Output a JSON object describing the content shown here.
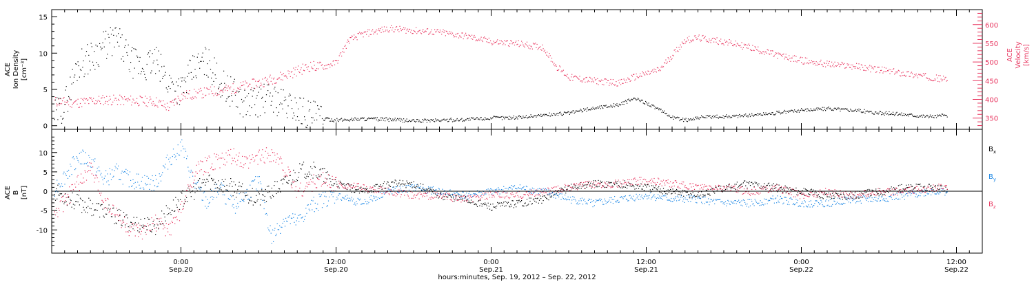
{
  "colors": {
    "black": "#000000",
    "pink": "#e8345e",
    "blue": "#1e88e5"
  },
  "xaxis": {
    "title": "hours:minutes, Sep. 19, 2012 – Sep. 22, 2012",
    "start_hour": 14,
    "end_hour": 86,
    "ticks": [
      {
        "hour": 24,
        "time": "0:00",
        "date": "Sep.20"
      },
      {
        "hour": 36,
        "time": "12:00",
        "date": "Sep.20"
      },
      {
        "hour": 48,
        "time": "0:00",
        "date": "Sep.21"
      },
      {
        "hour": 60,
        "time": "12:00",
        "date": "Sep.21"
      },
      {
        "hour": 72,
        "time": "0:00",
        "date": "Sep.22"
      },
      {
        "hour": 84,
        "time": "12:00",
        "date": "Sep.22"
      }
    ]
  },
  "chart_data": [
    {
      "type": "scatter",
      "panel": "top",
      "ylabel_left": [
        "ACE",
        "Ion Density",
        "[cm⁻³]"
      ],
      "ylabel_right": [
        "ACE",
        "Velocity",
        "[km/s]"
      ],
      "ylim_left": [
        -0.5,
        16
      ],
      "ylim_right": [
        320,
        640
      ],
      "yticks_left": [
        0,
        5,
        10,
        15
      ],
      "yticks_right": [
        350,
        400,
        450,
        500,
        550,
        600
      ],
      "grid": false,
      "series": [
        {
          "axis": "left",
          "color": "black",
          "points": [
            [
              14.2,
              1.5
            ],
            [
              15,
              3
            ],
            [
              16,
              8.5
            ],
            [
              17,
              9.5
            ],
            [
              18,
              11
            ],
            [
              19,
              12
            ],
            [
              20,
              9
            ],
            [
              21,
              8
            ],
            [
              22,
              9
            ],
            [
              23,
              6
            ],
            [
              24,
              5
            ],
            [
              25,
              8
            ],
            [
              26,
              9
            ],
            [
              27,
              6
            ],
            [
              28,
              4.5
            ],
            [
              29,
              3
            ],
            [
              30,
              3.5
            ],
            [
              31,
              4
            ],
            [
              32,
              3
            ],
            [
              33,
              2.5
            ],
            [
              34,
              1.5
            ],
            [
              35,
              1
            ],
            [
              36,
              0.8
            ],
            [
              38,
              1
            ],
            [
              40,
              0.9
            ],
            [
              42,
              0.7
            ],
            [
              44,
              0.8
            ],
            [
              46,
              0.9
            ],
            [
              48,
              1.1
            ],
            [
              50,
              1.2
            ],
            [
              52,
              1.5
            ],
            [
              54,
              1.8
            ],
            [
              56,
              2.5
            ],
            [
              58,
              3
            ],
            [
              59,
              3.8
            ],
            [
              60,
              3.2
            ],
            [
              61,
              2.2
            ],
            [
              62,
              1.2
            ],
            [
              63,
              0.8
            ],
            [
              64,
              1.2
            ],
            [
              66,
              1.3
            ],
            [
              68,
              1.5
            ],
            [
              70,
              1.8
            ],
            [
              72,
              2.2
            ],
            [
              74,
              2.4
            ],
            [
              76,
              2.2
            ],
            [
              78,
              1.8
            ],
            [
              80,
              1.6
            ],
            [
              82,
              1.3
            ],
            [
              84,
              1.6
            ],
            [
              86,
              1.5
            ]
          ]
        },
        {
          "axis": "right",
          "color": "pink",
          "points": [
            [
              14.2,
              395
            ],
            [
              16,
              392
            ],
            [
              18,
              400
            ],
            [
              20,
              398
            ],
            [
              22,
              395
            ],
            [
              23,
              380
            ],
            [
              24,
              410
            ],
            [
              26,
              420
            ],
            [
              28,
              430
            ],
            [
              30,
              445
            ],
            [
              32,
              465
            ],
            [
              34,
              490
            ],
            [
              35,
              488
            ],
            [
              36,
              500
            ],
            [
              37,
              560
            ],
            [
              38,
              575
            ],
            [
              40,
              590
            ],
            [
              42,
              585
            ],
            [
              44,
              580
            ],
            [
              46,
              570
            ],
            [
              48,
              555
            ],
            [
              50,
              550
            ],
            [
              52,
              540
            ],
            [
              53,
              490
            ],
            [
              54,
              460
            ],
            [
              56,
              450
            ],
            [
              58,
              445
            ],
            [
              59,
              460
            ],
            [
              60,
              470
            ],
            [
              61,
              480
            ],
            [
              62,
              520
            ],
            [
              63,
              560
            ],
            [
              64,
              565
            ],
            [
              66,
              555
            ],
            [
              68,
              540
            ],
            [
              70,
              520
            ],
            [
              72,
              505
            ],
            [
              74,
              495
            ],
            [
              76,
              490
            ],
            [
              78,
              480
            ],
            [
              80,
              470
            ],
            [
              82,
              460
            ],
            [
              84,
              450
            ],
            [
              86,
              448
            ]
          ]
        }
      ]
    },
    {
      "type": "scatter",
      "panel": "bottom",
      "ylabel_left": [
        "ACE",
        "B",
        "[nT]"
      ],
      "ylim": [
        -16,
        16
      ],
      "yticks": [
        -10,
        -5,
        0,
        5,
        10
      ],
      "grid": false,
      "series": [
        {
          "name": "B",
          "subscript": "x",
          "color": "black",
          "points": [
            [
              14.2,
              0
            ],
            [
              16,
              -3
            ],
            [
              18,
              -5
            ],
            [
              20,
              -8
            ],
            [
              22,
              -9
            ],
            [
              23,
              -5
            ],
            [
              24,
              -2
            ],
            [
              25,
              0
            ],
            [
              26,
              3
            ],
            [
              28,
              1
            ],
            [
              30,
              -2
            ],
            [
              32,
              2
            ],
            [
              33,
              5
            ],
            [
              34,
              6
            ],
            [
              36,
              2
            ],
            [
              38,
              0
            ],
            [
              40,
              2
            ],
            [
              42,
              2
            ],
            [
              44,
              -1
            ],
            [
              46,
              -2
            ],
            [
              48,
              -4
            ],
            [
              50,
              -3
            ],
            [
              52,
              -2
            ],
            [
              54,
              1
            ],
            [
              56,
              2
            ],
            [
              58,
              2
            ],
            [
              60,
              1
            ],
            [
              62,
              0
            ],
            [
              64,
              -1
            ],
            [
              66,
              1
            ],
            [
              68,
              2
            ],
            [
              70,
              1
            ],
            [
              72,
              0
            ],
            [
              74,
              -1
            ],
            [
              76,
              -1
            ],
            [
              78,
              0
            ],
            [
              80,
              1
            ],
            [
              82,
              1
            ],
            [
              84,
              0
            ],
            [
              86,
              -1
            ]
          ]
        },
        {
          "name": "B",
          "subscript": "y",
          "color": "blue",
          "points": [
            [
              14.2,
              1
            ],
            [
              15,
              4
            ],
            [
              16,
              9
            ],
            [
              17,
              8
            ],
            [
              18,
              3
            ],
            [
              19,
              5
            ],
            [
              20,
              3
            ],
            [
              22,
              2
            ],
            [
              23,
              8
            ],
            [
              24,
              12
            ],
            [
              25,
              2
            ],
            [
              26,
              -3
            ],
            [
              27,
              1
            ],
            [
              28,
              -4
            ],
            [
              29,
              -1
            ],
            [
              30,
              3
            ],
            [
              31,
              -12
            ],
            [
              32,
              -7
            ],
            [
              33,
              -8
            ],
            [
              34,
              -4
            ],
            [
              35,
              -2
            ],
            [
              36,
              -1
            ],
            [
              38,
              -3
            ],
            [
              40,
              0
            ],
            [
              42,
              1
            ],
            [
              44,
              0
            ],
            [
              46,
              -1
            ],
            [
              48,
              0
            ],
            [
              50,
              1
            ],
            [
              52,
              0
            ],
            [
              54,
              -2
            ],
            [
              56,
              -3
            ],
            [
              58,
              -2
            ],
            [
              60,
              -1
            ],
            [
              62,
              -2
            ],
            [
              64,
              -2
            ],
            [
              66,
              -3
            ],
            [
              68,
              -3
            ],
            [
              70,
              -2
            ],
            [
              72,
              -3
            ],
            [
              74,
              -3
            ],
            [
              76,
              -2
            ],
            [
              78,
              -2
            ],
            [
              80,
              -1
            ],
            [
              82,
              0
            ],
            [
              84,
              0
            ],
            [
              86,
              0
            ]
          ]
        },
        {
          "name": "B",
          "subscript": "z",
          "color": "pink",
          "points": [
            [
              14.2,
              -6
            ],
            [
              16,
              2
            ],
            [
              17,
              6
            ],
            [
              18,
              -2
            ],
            [
              19,
              -6
            ],
            [
              20,
              -10
            ],
            [
              21,
              -11
            ],
            [
              22,
              -8
            ],
            [
              23,
              -10
            ],
            [
              24,
              -5
            ],
            [
              25,
              5
            ],
            [
              26,
              7
            ],
            [
              27,
              8
            ],
            [
              28,
              9
            ],
            [
              29,
              7
            ],
            [
              30,
              9
            ],
            [
              31,
              10
            ],
            [
              32,
              6
            ],
            [
              33,
              0
            ],
            [
              34,
              2
            ],
            [
              35,
              3
            ],
            [
              36,
              2
            ],
            [
              38,
              1
            ],
            [
              40,
              0
            ],
            [
              42,
              -1
            ],
            [
              44,
              -1
            ],
            [
              46,
              -2
            ],
            [
              48,
              -1
            ],
            [
              50,
              -1
            ],
            [
              52,
              0
            ],
            [
              54,
              1
            ],
            [
              56,
              2
            ],
            [
              58,
              2
            ],
            [
              60,
              3
            ],
            [
              62,
              2
            ],
            [
              64,
              1
            ],
            [
              66,
              1
            ],
            [
              68,
              0
            ],
            [
              70,
              1
            ],
            [
              72,
              -1
            ],
            [
              74,
              0
            ],
            [
              76,
              -1
            ],
            [
              78,
              0
            ],
            [
              80,
              0
            ],
            [
              82,
              1
            ],
            [
              84,
              1
            ],
            [
              86,
              1
            ]
          ]
        }
      ]
    }
  ]
}
